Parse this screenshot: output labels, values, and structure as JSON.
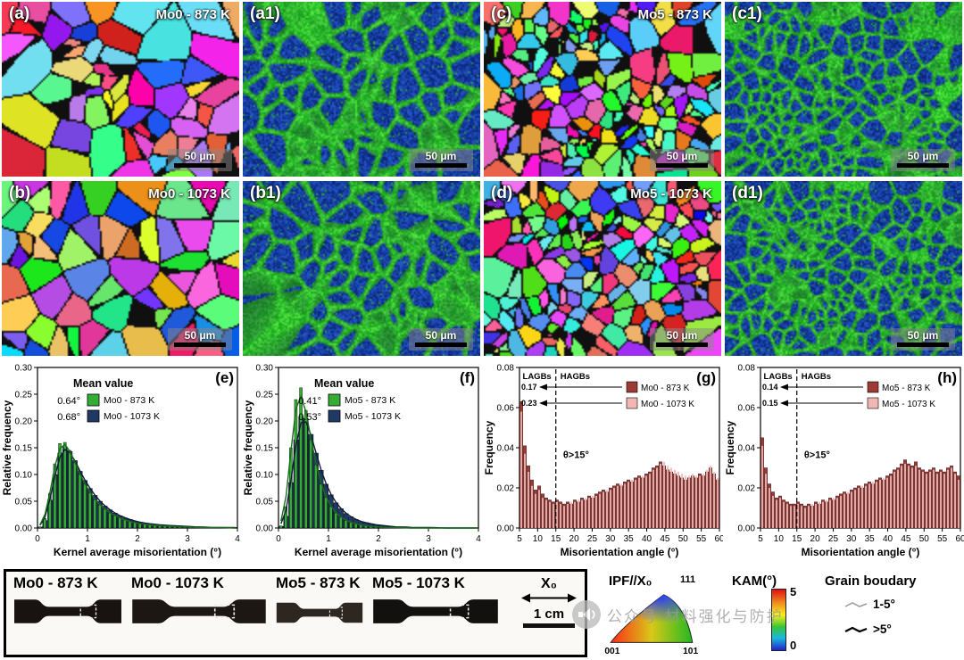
{
  "figure": {
    "panels": [
      {
        "id": "a",
        "label": "(a)",
        "title": "Mo0 - 873 K",
        "scale_bar": "50 μm",
        "type": "ipf",
        "grains": "coarse"
      },
      {
        "id": "a1",
        "label": "(a1)",
        "scale_bar": "50 μm",
        "type": "kam",
        "grains": "coarse"
      },
      {
        "id": "c",
        "label": "(c)",
        "title": "Mo5 - 873 K",
        "scale_bar": "50 μm",
        "type": "ipf",
        "grains": "fine"
      },
      {
        "id": "c1",
        "label": "(c1)",
        "scale_bar": "50 μm",
        "type": "kam",
        "grains": "fine"
      },
      {
        "id": "b",
        "label": "(b)",
        "title": "Mo0 - 1073 K",
        "scale_bar": "50 μm",
        "type": "ipf",
        "grains": "coarse"
      },
      {
        "id": "b1",
        "label": "(b1)",
        "scale_bar": "50 μm",
        "type": "kam",
        "grains": "coarse"
      },
      {
        "id": "d",
        "label": "(d)",
        "title": "Mo5 - 1073 K",
        "scale_bar": "50 μm",
        "type": "ipf",
        "grains": "fine"
      },
      {
        "id": "d1",
        "label": "(d1)",
        "scale_bar": "50 μm",
        "type": "kam",
        "grains": "fine"
      }
    ]
  },
  "chart_data": [
    {
      "type": "bar",
      "kind": "kam_histogram",
      "panel_label": "(e)",
      "legend_title": "Mean value",
      "xlabel": "Kernel average misorientation (°)",
      "ylabel": "Relative frequency",
      "x_min": 0,
      "x_max": 4,
      "x_ticks": [
        "0",
        "1",
        "2",
        "3",
        "4"
      ],
      "y_max": 0.3,
      "y_ticks": [
        "0.00",
        "0.05",
        "0.10",
        "0.15",
        "0.20",
        "0.25",
        "0.30"
      ],
      "bin_width": 0.1,
      "series": [
        {
          "name": "Mo0 - 873 K",
          "mean": "0.64°",
          "color": "#35ad35",
          "curve": "#186e18",
          "values": [
            0.002,
            0.018,
            0.065,
            0.12,
            0.158,
            0.16,
            0.145,
            0.122,
            0.1,
            0.082,
            0.066,
            0.053,
            0.043,
            0.035,
            0.028,
            0.023,
            0.019,
            0.015,
            0.012,
            0.01,
            0.008,
            0.007,
            0.006,
            0.005,
            0.004,
            0.004,
            0.003,
            0.003,
            0.002,
            0.002,
            0.002,
            0.001,
            0.001,
            0.001,
            0.001,
            0.001,
            0.001,
            0.001,
            0.0,
            0.0
          ]
        },
        {
          "name": "Mo0 - 1073 K",
          "mean": "0.68°",
          "color": "#1f3864",
          "curve": "#101d36",
          "values": [
            0.002,
            0.014,
            0.052,
            0.1,
            0.14,
            0.152,
            0.143,
            0.126,
            0.106,
            0.089,
            0.074,
            0.061,
            0.05,
            0.041,
            0.034,
            0.028,
            0.023,
            0.019,
            0.016,
            0.013,
            0.011,
            0.009,
            0.008,
            0.007,
            0.006,
            0.005,
            0.005,
            0.004,
            0.004,
            0.003,
            0.003,
            0.002,
            0.002,
            0.002,
            0.001,
            0.001,
            0.001,
            0.001,
            0.001,
            0.001
          ]
        }
      ]
    },
    {
      "type": "bar",
      "kind": "kam_histogram",
      "panel_label": "(f)",
      "legend_title": "Mean value",
      "xlabel": "Kernel average misorientation (°)",
      "ylabel": "Relative frequency",
      "x_min": 0,
      "x_max": 4,
      "x_ticks": [
        "0",
        "1",
        "2",
        "3",
        "4"
      ],
      "y_max": 0.3,
      "y_ticks": [
        "0.00",
        "0.05",
        "0.10",
        "0.15",
        "0.20",
        "0.25",
        "0.30"
      ],
      "bin_width": 0.1,
      "series": [
        {
          "name": "Mo5 - 873 K",
          "mean": "0.41°",
          "color": "#35ad35",
          "curve": "#186e18",
          "values": [
            0.004,
            0.04,
            0.15,
            0.24,
            0.262,
            0.22,
            0.165,
            0.118,
            0.082,
            0.057,
            0.04,
            0.028,
            0.02,
            0.014,
            0.01,
            0.008,
            0.006,
            0.004,
            0.003,
            0.002,
            0.002,
            0.001,
            0.001,
            0.001,
            0.001,
            0.0,
            0.0,
            0.0,
            0.0,
            0.0,
            0.0,
            0.0,
            0.0,
            0.0,
            0.0,
            0.0,
            0.0,
            0.0,
            0.0,
            0.0
          ]
        },
        {
          "name": "Mo5 - 1073 K",
          "mean": "0.53°",
          "color": "#1f3864",
          "curve": "#101d36",
          "values": [
            0.003,
            0.022,
            0.085,
            0.165,
            0.208,
            0.205,
            0.175,
            0.14,
            0.108,
            0.082,
            0.062,
            0.047,
            0.036,
            0.027,
            0.021,
            0.016,
            0.012,
            0.01,
            0.008,
            0.006,
            0.005,
            0.004,
            0.003,
            0.002,
            0.002,
            0.002,
            0.001,
            0.001,
            0.001,
            0.001,
            0.001,
            0.001,
            0.0,
            0.0,
            0.0,
            0.0,
            0.0,
            0.0,
            0.0,
            0.0
          ]
        }
      ]
    },
    {
      "type": "bar",
      "kind": "mis_histogram",
      "panel_label": "(g)",
      "xlabel": "Misorientation angle (°)",
      "ylabel": "Frequency",
      "x_min": 5,
      "x_max": 60,
      "x_ticks": [
        "5",
        "10",
        "15",
        "20",
        "25",
        "30",
        "35",
        "40",
        "45",
        "50",
        "55",
        "60"
      ],
      "y_max": 0.08,
      "y_ticks": [
        "0.00",
        "0.02",
        "0.04",
        "0.06",
        "0.08"
      ],
      "lagb_label": "LAGBs",
      "hagb_label": "HAGBs",
      "threshold_deg": 15,
      "theta_label": "θ>15°",
      "annotations": [
        {
          "value": "0.17"
        },
        {
          "value": "0.23"
        }
      ],
      "series": [
        {
          "name": "Mo0 - 873 K",
          "color": "#9c3a36",
          "values": [
            0.063,
            0.041,
            0.031,
            0.024,
            0.019,
            0.021,
            0.017,
            0.015,
            0.014,
            0.013,
            0.014,
            0.013,
            0.012,
            0.013,
            0.012,
            0.014,
            0.013,
            0.015,
            0.014,
            0.016,
            0.015,
            0.017,
            0.018,
            0.019,
            0.018,
            0.02,
            0.021,
            0.022,
            0.021,
            0.023,
            0.024,
            0.023,
            0.025,
            0.026,
            0.025,
            0.027,
            0.028,
            0.03,
            0.031,
            0.033,
            0.031,
            0.029,
            0.028,
            0.027,
            0.026,
            0.025,
            0.024,
            0.025,
            0.026,
            0.025,
            0.027,
            0.026,
            0.028,
            0.03,
            0.027,
            0.024
          ]
        },
        {
          "name": "Mo0 - 1073 K",
          "color": "#f2b6b4",
          "values": [
            0.058,
            0.037,
            0.028,
            0.021,
            0.017,
            0.019,
            0.015,
            0.014,
            0.013,
            0.012,
            0.013,
            0.012,
            0.011,
            0.012,
            0.013,
            0.013,
            0.014,
            0.014,
            0.015,
            0.015,
            0.016,
            0.016,
            0.017,
            0.018,
            0.019,
            0.019,
            0.02,
            0.021,
            0.022,
            0.022,
            0.023,
            0.024,
            0.024,
            0.025,
            0.026,
            0.026,
            0.027,
            0.029,
            0.03,
            0.032,
            0.033,
            0.031,
            0.03,
            0.029,
            0.028,
            0.027,
            0.026,
            0.026,
            0.027,
            0.026,
            0.026,
            0.027,
            0.029,
            0.031,
            0.028,
            0.025
          ]
        }
      ]
    },
    {
      "type": "bar",
      "kind": "mis_histogram",
      "panel_label": "(h)",
      "xlabel": "Misorientation angle (°)",
      "ylabel": "Frequency",
      "x_min": 5,
      "x_max": 60,
      "x_ticks": [
        "5",
        "10",
        "15",
        "20",
        "25",
        "30",
        "35",
        "40",
        "45",
        "50",
        "55",
        "60"
      ],
      "y_max": 0.08,
      "y_ticks": [
        "0.00",
        "0.02",
        "0.04",
        "0.06",
        "0.08"
      ],
      "lagb_label": "LAGBs",
      "hagb_label": "HAGBs",
      "threshold_deg": 15,
      "theta_label": "θ>15°",
      "annotations": [
        {
          "value": "0.14"
        },
        {
          "value": "0.15"
        }
      ],
      "series": [
        {
          "name": "Mo5 - 873 K",
          "color": "#9c3a36",
          "values": [
            0.045,
            0.03,
            0.022,
            0.018,
            0.015,
            0.016,
            0.014,
            0.013,
            0.012,
            0.012,
            0.013,
            0.012,
            0.011,
            0.012,
            0.011,
            0.013,
            0.012,
            0.014,
            0.013,
            0.015,
            0.014,
            0.016,
            0.017,
            0.018,
            0.017,
            0.019,
            0.02,
            0.021,
            0.02,
            0.022,
            0.023,
            0.022,
            0.024,
            0.025,
            0.024,
            0.026,
            0.027,
            0.029,
            0.03,
            0.032,
            0.034,
            0.032,
            0.031,
            0.033,
            0.03,
            0.029,
            0.028,
            0.029,
            0.03,
            0.028,
            0.029,
            0.028,
            0.03,
            0.031,
            0.028,
            0.026
          ]
        },
        {
          "name": "Mo5 - 1073 K",
          "color": "#f2b6b4",
          "values": [
            0.041,
            0.027,
            0.02,
            0.016,
            0.014,
            0.015,
            0.013,
            0.012,
            0.011,
            0.011,
            0.012,
            0.011,
            0.01,
            0.011,
            0.012,
            0.012,
            0.013,
            0.013,
            0.014,
            0.014,
            0.015,
            0.015,
            0.016,
            0.017,
            0.018,
            0.018,
            0.019,
            0.02,
            0.021,
            0.021,
            0.022,
            0.023,
            0.023,
            0.024,
            0.025,
            0.025,
            0.026,
            0.028,
            0.029,
            0.031,
            0.032,
            0.031,
            0.03,
            0.031,
            0.029,
            0.028,
            0.027,
            0.028,
            0.029,
            0.027,
            0.028,
            0.027,
            0.029,
            0.03,
            0.027,
            0.024
          ]
        }
      ]
    }
  ],
  "bottom": {
    "box": {
      "specimens": [
        {
          "label": "Mo0 - 873 K"
        },
        {
          "label": "Mo0 - 1073 K"
        },
        {
          "label": "Mo5 - 873 K"
        },
        {
          "label": "Mo5 - 1073 K"
        }
      ],
      "direction_label": "X₀",
      "scale_label": "1 cm"
    },
    "legend": {
      "ipf_title": "IPF//X₀",
      "ipf_pole_top": "111",
      "ipf_pole_bl": "001",
      "ipf_pole_br": "101",
      "kam_title": "KAM(°)",
      "kam_max": "5",
      "kam_min": "0",
      "gb_title": "Grain boudary",
      "gb_items": [
        {
          "label": "1-5°"
        },
        {
          "label": ">5°"
        }
      ]
    },
    "watermark": "公众号·材料强化与防护"
  }
}
